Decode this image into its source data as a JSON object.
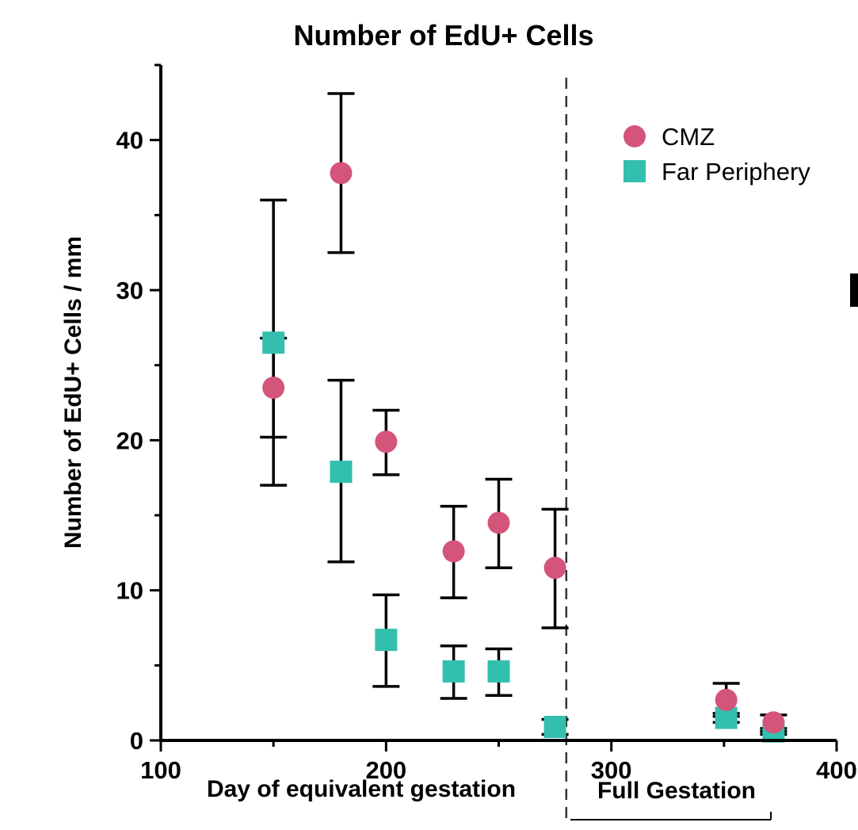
{
  "chart_data": {
    "type": "scatter",
    "title": "Number of EdU+ Cells",
    "xlabel": "Day of equivalent gestation",
    "ylabel": "Number of EdU+ Cells / mm",
    "xlim": [
      100,
      400
    ],
    "ylim": [
      0,
      45
    ],
    "x_ticks": [
      100,
      200,
      300,
      400
    ],
    "x_tick_labels": [
      "100",
      "200",
      "300",
      "400"
    ],
    "y_ticks": [
      0,
      10,
      20,
      30,
      40
    ],
    "y_tick_labels": [
      "0",
      "10",
      "20",
      "30",
      "40"
    ],
    "grid": false,
    "legend_position": "top-right",
    "reference_line": {
      "x": 280,
      "style": "dashed"
    },
    "annotation": "Full Gestation",
    "series": [
      {
        "name": "CMZ",
        "marker": "circle",
        "color": "#d4547a",
        "points": [
          {
            "x": 150,
            "y": 23.5,
            "err_low": 17.0,
            "err_high": 36.0
          },
          {
            "x": 180,
            "y": 37.8,
            "err_low": 32.5,
            "err_high": 43.1
          },
          {
            "x": 200,
            "y": 19.9,
            "err_low": 17.7,
            "err_high": 22.0
          },
          {
            "x": 230,
            "y": 12.6,
            "err_low": 9.5,
            "err_high": 15.6
          },
          {
            "x": 250,
            "y": 14.5,
            "err_low": 11.5,
            "err_high": 17.4
          },
          {
            "x": 275,
            "y": 11.5,
            "err_low": 7.5,
            "err_high": 15.4
          },
          {
            "x": 351,
            "y": 2.7,
            "err_low": 1.6,
            "err_high": 3.8
          },
          {
            "x": 372,
            "y": 1.2,
            "err_low": 0.6,
            "err_high": 1.7
          }
        ]
      },
      {
        "name": "Far Periphery",
        "marker": "square",
        "color": "#33bfae",
        "points": [
          {
            "x": 150,
            "y": 26.5,
            "err_low": 20.2,
            "err_high": 26.8
          },
          {
            "x": 180,
            "y": 17.9,
            "err_low": 11.9,
            "err_high": 24.0
          },
          {
            "x": 200,
            "y": 6.7,
            "err_low": 3.6,
            "err_high": 9.7
          },
          {
            "x": 230,
            "y": 4.6,
            "err_low": 2.8,
            "err_high": 6.3
          },
          {
            "x": 250,
            "y": 4.6,
            "err_low": 3.0,
            "err_high": 6.1
          },
          {
            "x": 275,
            "y": 0.9,
            "err_low": 0.4,
            "err_high": 1.4
          },
          {
            "x": 351,
            "y": 1.5,
            "err_low": 1.2,
            "err_high": 1.8
          },
          {
            "x": 372,
            "y": 0.6,
            "err_low": 0.4,
            "err_high": 0.8
          }
        ]
      }
    ]
  }
}
